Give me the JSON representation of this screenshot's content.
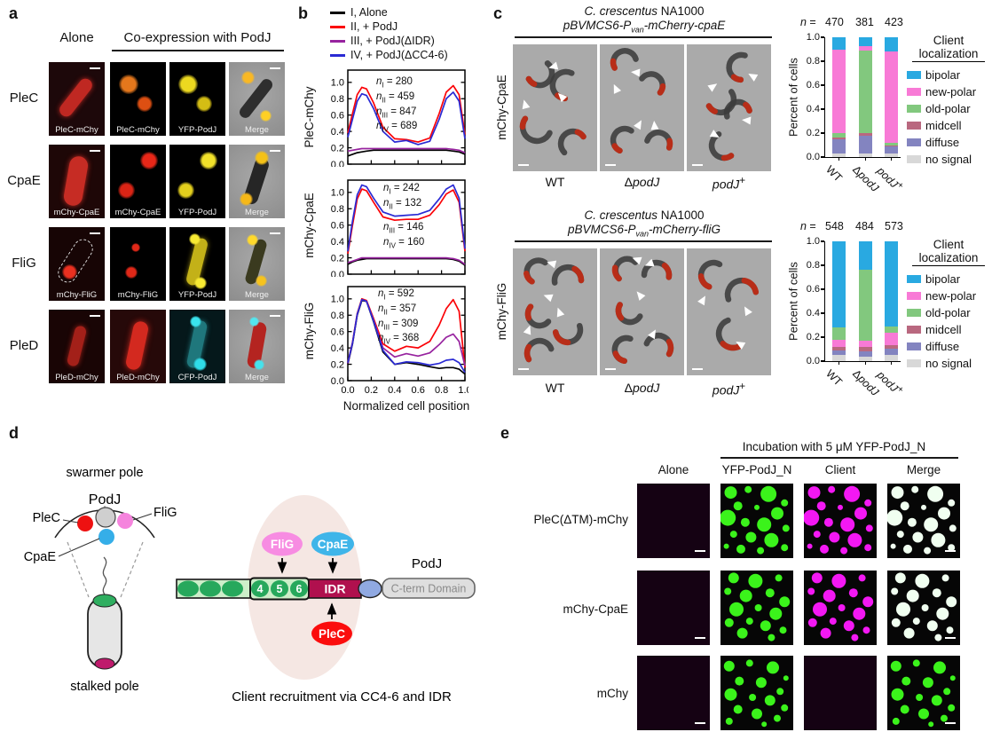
{
  "panels": {
    "a": {
      "label": "a",
      "header_alone": "Alone",
      "header_coexpression": "Co-expression with PodJ",
      "rows": [
        {
          "name": "PleC",
          "cells": [
            "PleC-mChy",
            "PleC-mChy",
            "YFP-PodJ",
            "Merge"
          ]
        },
        {
          "name": "CpaE",
          "cells": [
            "mChy-CpaE",
            "mChy-CpaE",
            "YFP-PodJ",
            "Merge"
          ]
        },
        {
          "name": "FliG",
          "cells": [
            "mChy-FliG",
            "mChy-FliG",
            "YFP-PodJ",
            "Merge"
          ]
        },
        {
          "name": "PleD",
          "cells": [
            "PleD-mChy",
            "PleD-mChy",
            "CFP-PodJ",
            "Merge"
          ]
        }
      ]
    },
    "b": {
      "label": "b",
      "legend": [
        {
          "label": "I, Alone",
          "color": "#000000"
        },
        {
          "label": "II, + PodJ",
          "color": "#fb0207"
        },
        {
          "label": "III, + PodJ(ΔIDR)",
          "color": "#97239f"
        },
        {
          "label": "IV, + PodJ(ΔCC4-6)",
          "color": "#2a2ad4"
        }
      ],
      "xlabel": "Normalized cell position"
    },
    "c": {
      "label": "c",
      "subpanels": [
        {
          "strain_italic": "C. crescentus",
          "strain_rest": " NA1000",
          "plasmid_pre": "pBVMCS6-P",
          "plasmid_sub": "van",
          "plasmid_post": "-mCherry-cpaE",
          "row_label": "mChy-CpaE"
        },
        {
          "strain_italic": "C. crescentus",
          "strain_rest": " NA1000",
          "plasmid_pre": "pBVMCS6-P",
          "plasmid_sub": "van",
          "plasmid_post": "-mCherry-fliG",
          "row_label": "mChy-FliG"
        }
      ],
      "conditions": [
        {
          "prefix": "",
          "text": "WT",
          "italic": false,
          "sup": ""
        },
        {
          "prefix": "Δ",
          "text": "podJ",
          "italic": true,
          "sup": ""
        },
        {
          "prefix": "",
          "text": "podJ",
          "italic": true,
          "sup": "+"
        }
      ],
      "legend_title_line1": "Client",
      "legend_title_line2": "localization",
      "legend": [
        {
          "label": "bipolar",
          "color": "#29a9e1"
        },
        {
          "label": "new-polar",
          "color": "#f87ad6"
        },
        {
          "label": "old-polar",
          "color": "#82c87e"
        },
        {
          "label": "midcell",
          "color": "#b9687f"
        },
        {
          "label": "diffuse",
          "color": "#8384c0"
        },
        {
          "label": "no signal",
          "color": "#d8d8d8"
        }
      ]
    },
    "d": {
      "label": "d",
      "swarmer_pole": "swarmer pole",
      "stalked_pole": "stalked pole",
      "podj": "PodJ",
      "plec": "PleC",
      "flig": "FliG",
      "cpae": "CpaE",
      "domain_flig": "FliG",
      "domain_cpae": "CpaE",
      "domain_plec": "PleC",
      "domain_podj": "PodJ",
      "domain_idr": "IDR",
      "domain_cterm": "C-term Domain",
      "domain_segments": [
        "4",
        "5",
        "6"
      ],
      "caption": "Client recruitment via CC4-6 and IDR"
    },
    "e": {
      "label": "e",
      "header": "Incubation with 5 μM YFP-PodJ_N",
      "col_headers": [
        "Alone",
        "YFP-PodJ_N",
        "Client",
        "Merge"
      ],
      "row_labels": [
        "PleC(ΔTM)-mChy",
        "mChy-CpaE",
        "mChy"
      ]
    }
  },
  "chart_data": [
    {
      "id": "profile_plec",
      "type": "line",
      "ylabel": "PleC-mChy",
      "ylim": [
        0,
        1.15
      ],
      "yticks": [
        0.0,
        0.2,
        0.4,
        0.6,
        0.8,
        1.0
      ],
      "xticks": [
        0.0,
        0.2,
        0.4,
        0.6,
        0.8,
        1.0
      ],
      "x": [
        0,
        0.04,
        0.08,
        0.12,
        0.16,
        0.22,
        0.3,
        0.4,
        0.5,
        0.6,
        0.7,
        0.78,
        0.84,
        0.9,
        0.95,
        1
      ],
      "series": [
        {
          "name": "I, Alone",
          "color": "#000000",
          "values": [
            0.1,
            0.12,
            0.14,
            0.15,
            0.16,
            0.17,
            0.17,
            0.17,
            0.17,
            0.17,
            0.17,
            0.17,
            0.17,
            0.16,
            0.15,
            0.12
          ]
        },
        {
          "name": "II, + PodJ",
          "color": "#fb0207",
          "values": [
            0.38,
            0.62,
            0.85,
            0.94,
            0.92,
            0.75,
            0.45,
            0.31,
            0.3,
            0.27,
            0.32,
            0.62,
            0.88,
            0.96,
            0.85,
            0.36
          ]
        },
        {
          "name": "III, + PodJ(ΔIDR)",
          "color": "#97239f",
          "values": [
            0.16,
            0.17,
            0.18,
            0.19,
            0.19,
            0.19,
            0.19,
            0.19,
            0.19,
            0.19,
            0.19,
            0.19,
            0.19,
            0.18,
            0.17,
            0.14
          ]
        },
        {
          "name": "IV, + PodJ(ΔCC4-6)",
          "color": "#2a2ad4",
          "values": [
            0.33,
            0.55,
            0.77,
            0.86,
            0.84,
            0.68,
            0.4,
            0.27,
            0.29,
            0.24,
            0.28,
            0.55,
            0.8,
            0.88,
            0.77,
            0.31
          ]
        }
      ],
      "annotations": [
        {
          "sub": "I",
          "value": "280"
        },
        {
          "sub": "II",
          "value": "459"
        },
        {
          "sub": "III",
          "value": "847"
        },
        {
          "sub": "IV",
          "value": "689"
        }
      ]
    },
    {
      "id": "profile_cpae",
      "type": "line",
      "ylabel": "mChy-CpaE",
      "ylim": [
        0,
        1.15
      ],
      "yticks": [
        0.0,
        0.2,
        0.4,
        0.6,
        0.8,
        1.0
      ],
      "xticks": [
        0.0,
        0.2,
        0.4,
        0.6,
        0.8,
        1.0
      ],
      "x": [
        0,
        0.04,
        0.08,
        0.12,
        0.16,
        0.22,
        0.3,
        0.4,
        0.5,
        0.6,
        0.7,
        0.78,
        0.84,
        0.9,
        0.95,
        1
      ],
      "series": [
        {
          "name": "I, Alone",
          "color": "#000000",
          "values": [
            0.12,
            0.15,
            0.17,
            0.18,
            0.19,
            0.19,
            0.19,
            0.19,
            0.19,
            0.19,
            0.19,
            0.19,
            0.19,
            0.18,
            0.16,
            0.11
          ]
        },
        {
          "name": "II, + PodJ",
          "color": "#fb0207",
          "values": [
            0.25,
            0.6,
            0.92,
            1.04,
            1.02,
            0.88,
            0.7,
            0.66,
            0.67,
            0.67,
            0.72,
            0.85,
            0.98,
            1.03,
            0.88,
            0.28
          ]
        },
        {
          "name": "III, + PodJ(ΔIDR)",
          "color": "#97239f",
          "values": [
            0.14,
            0.16,
            0.18,
            0.2,
            0.2,
            0.2,
            0.2,
            0.2,
            0.2,
            0.2,
            0.2,
            0.2,
            0.2,
            0.19,
            0.17,
            0.12
          ]
        },
        {
          "name": "IV, + PodJ(ΔCC4-6)",
          "color": "#2a2ad4",
          "values": [
            0.28,
            0.65,
            0.97,
            1.09,
            1.07,
            0.93,
            0.76,
            0.71,
            0.72,
            0.73,
            0.78,
            0.92,
            1.04,
            1.09,
            0.93,
            0.31
          ]
        }
      ],
      "annotations": [
        {
          "sub": "I",
          "value": "242"
        },
        {
          "sub": "II",
          "value": "132"
        },
        {
          "sub": "III",
          "value": "146"
        },
        {
          "sub": "IV",
          "value": "160"
        }
      ]
    },
    {
      "id": "profile_flig",
      "type": "line",
      "ylabel": "mChy-FliG",
      "xlabel": "Normalized cell position",
      "ylim": [
        0,
        1.15
      ],
      "yticks": [
        0.0,
        0.2,
        0.4,
        0.6,
        0.8,
        1.0
      ],
      "xticks": [
        0.0,
        0.2,
        0.4,
        0.6,
        0.8,
        1.0
      ],
      "x": [
        0,
        0.04,
        0.08,
        0.12,
        0.16,
        0.22,
        0.3,
        0.4,
        0.5,
        0.6,
        0.7,
        0.78,
        0.84,
        0.9,
        0.95,
        1
      ],
      "series": [
        {
          "name": "I, Alone",
          "color": "#000000",
          "values": [
            0.2,
            0.45,
            0.8,
            0.98,
            0.97,
            0.72,
            0.35,
            0.2,
            0.22,
            0.2,
            0.17,
            0.15,
            0.16,
            0.16,
            0.14,
            0.08
          ]
        },
        {
          "name": "II, + PodJ",
          "color": "#fb0207",
          "values": [
            0.22,
            0.47,
            0.82,
            1.0,
            0.98,
            0.76,
            0.45,
            0.36,
            0.42,
            0.4,
            0.48,
            0.68,
            0.88,
            0.99,
            0.85,
            0.16
          ]
        },
        {
          "name": "III, + PodJ(ΔIDR)",
          "color": "#97239f",
          "values": [
            0.21,
            0.46,
            0.81,
            0.99,
            0.97,
            0.74,
            0.4,
            0.29,
            0.33,
            0.3,
            0.34,
            0.44,
            0.53,
            0.57,
            0.48,
            0.18
          ]
        },
        {
          "name": "IV, + PodJ(ΔCC4-6)",
          "color": "#2a2ad4",
          "values": [
            0.22,
            0.46,
            0.81,
            0.99,
            0.97,
            0.73,
            0.37,
            0.2,
            0.23,
            0.22,
            0.19,
            0.21,
            0.25,
            0.26,
            0.22,
            0.1
          ]
        }
      ],
      "annotations": [
        {
          "sub": "I",
          "value": "592"
        },
        {
          "sub": "II",
          "value": "357"
        },
        {
          "sub": "III",
          "value": "309"
        },
        {
          "sub": "IV",
          "value": "368"
        }
      ]
    },
    {
      "id": "bars_cpae",
      "type": "stacked-bar",
      "n_prefix": "n",
      "n_values": [
        "470",
        "381",
        "423"
      ],
      "ylabel": "Percent of cells",
      "yticks": [
        0.0,
        0.2,
        0.4,
        0.6,
        0.8,
        1.0
      ],
      "ylim": [
        0,
        1
      ],
      "categories": [
        "WT",
        "ΔpodJ",
        "podJ+"
      ],
      "segment_order": [
        "no signal",
        "diffuse",
        "midcell",
        "old-polar",
        "new-polar",
        "bipolar"
      ],
      "bars": [
        [
          0.03,
          0.12,
          0.01,
          0.04,
          0.7,
          0.1
        ],
        [
          0.03,
          0.15,
          0.02,
          0.69,
          0.04,
          0.07
        ],
        [
          0.03,
          0.06,
          0.01,
          0.02,
          0.76,
          0.12
        ]
      ]
    },
    {
      "id": "bars_flig",
      "type": "stacked-bar",
      "n_prefix": "n",
      "n_values": [
        "548",
        "484",
        "573"
      ],
      "ylabel": "Percent of cells",
      "yticks": [
        0.0,
        0.2,
        0.4,
        0.6,
        0.8,
        1.0
      ],
      "ylim": [
        0,
        1
      ],
      "categories": [
        "WT",
        "ΔpodJ",
        "podJ+"
      ],
      "segment_order": [
        "no signal",
        "diffuse",
        "midcell",
        "new-polar",
        "old-polar",
        "bipolar"
      ],
      "bars": [
        [
          0.05,
          0.04,
          0.03,
          0.06,
          0.1,
          0.72
        ],
        [
          0.04,
          0.04,
          0.04,
          0.05,
          0.59,
          0.24
        ],
        [
          0.05,
          0.05,
          0.03,
          0.11,
          0.05,
          0.71
        ]
      ]
    }
  ]
}
